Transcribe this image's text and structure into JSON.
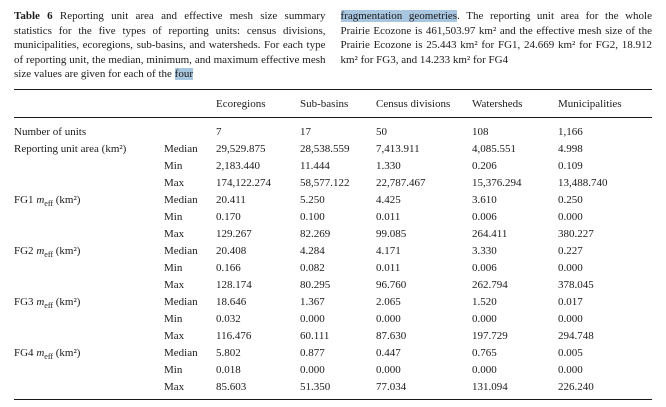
{
  "colors": {
    "highlight": "#a9c6e0"
  },
  "caption": {
    "label": "Table 6",
    "left_text": " Reporting unit area and effective mesh size summary statistics for the five types of reporting units: census divisions, municipalities, ecoregions, sub-basins, and watersheds. For each type of reporting unit, the median, minimum, and maximum effective mesh size values are given for each of the ",
    "left_highlight": "four",
    "right_highlight": "fragmentation geometries",
    "right_text": ". The reporting unit area for the whole Prairie Ecozone is 461,503.97 km² and the effective mesh size of the Prairie Ecozone is 25.443 km² for FG1, 24.669 km² for FG2, 18.912 km² for FG3, and 14.233 km² for FG4"
  },
  "table": {
    "columns": [
      "Ecoregions",
      "Sub-basins",
      "Census divisions",
      "Watersheds",
      "Municipalities"
    ],
    "rows": [
      {
        "label": {
          "pre": "Number of units"
        },
        "values": [
          "7",
          "17",
          "50",
          "108",
          "1,166"
        ]
      },
      {
        "label": {
          "pre": "Reporting unit area (km²)"
        },
        "stat": "Median",
        "values": [
          "29,529.875",
          "28,538.559",
          "7,413.911",
          "4,085.551",
          "4.998"
        ]
      },
      {
        "stat": "Min",
        "values": [
          "2,183.440",
          "11.444",
          "1.330",
          "0.206",
          "0.109"
        ]
      },
      {
        "stat": "Max",
        "values": [
          "174,122.274",
          "58,577.122",
          "22,787.467",
          "15,376.294",
          "13,488.740"
        ]
      },
      {
        "label": {
          "pre": "FG1 ",
          "italic": "m",
          "sub": "eff",
          "post": " (km²)"
        },
        "stat": "Median",
        "values": [
          "20.411",
          "5.250",
          "4.425",
          "3.610",
          "0.250"
        ]
      },
      {
        "stat": "Min",
        "values": [
          "0.170",
          "0.100",
          "0.011",
          "0.006",
          "0.000"
        ]
      },
      {
        "stat": "Max",
        "values": [
          "129.267",
          "82.269",
          "99.085",
          "264.411",
          "380.227"
        ]
      },
      {
        "label": {
          "pre": "FG2 ",
          "italic": "m",
          "sub": "eff",
          "post": " (km²)"
        },
        "stat": "Median",
        "values": [
          "20.408",
          "4.284",
          "4.171",
          "3.330",
          "0.227"
        ]
      },
      {
        "stat": "Min",
        "values": [
          "0.166",
          "0.082",
          "0.011",
          "0.006",
          "0.000"
        ]
      },
      {
        "stat": "Max",
        "values": [
          "128.174",
          "80.295",
          "96.760",
          "262.794",
          "378.045"
        ]
      },
      {
        "label": {
          "pre": "FG3 ",
          "italic": "m",
          "sub": "eff",
          "post": " (km²)"
        },
        "stat": "Median",
        "values": [
          "18.646",
          "1.367",
          "2.065",
          "1.520",
          "0.017"
        ]
      },
      {
        "stat": "Min",
        "values": [
          "0.032",
          "0.000",
          "0.000",
          "0.000",
          "0.000"
        ]
      },
      {
        "stat": "Max",
        "values": [
          "116.476",
          "60.111",
          "87.630",
          "197.729",
          "294.748"
        ]
      },
      {
        "label": {
          "pre": "FG4 ",
          "italic": "m",
          "sub": "eff",
          "post": " (km²)"
        },
        "stat": "Median",
        "values": [
          "5.802",
          "0.877",
          "0.447",
          "0.765",
          "0.005"
        ]
      },
      {
        "stat": "Min",
        "values": [
          "0.018",
          "0.000",
          "0.000",
          "0.000",
          "0.000"
        ]
      },
      {
        "stat": "Max",
        "values": [
          "85.603",
          "51.350",
          "77.034",
          "131.094",
          "226.240"
        ]
      }
    ]
  }
}
